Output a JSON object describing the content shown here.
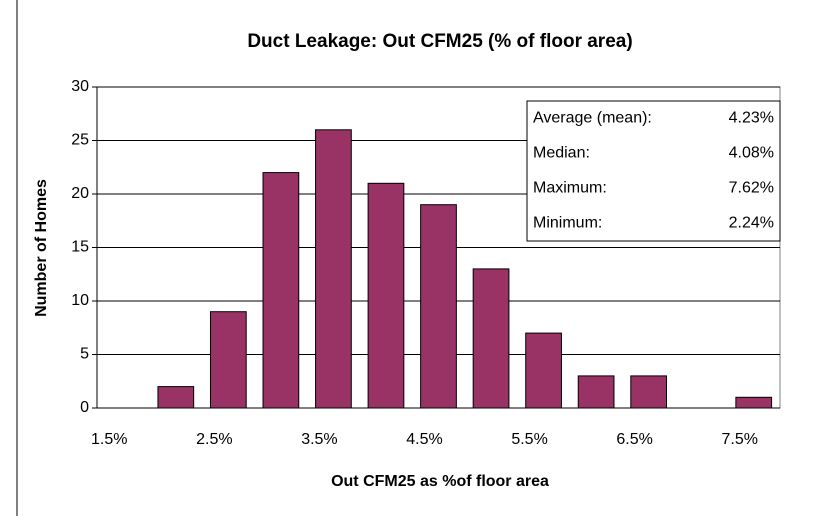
{
  "chart_data": {
    "type": "bar",
    "title": "Duct Leakage: Out CFM25 (% of floor area)",
    "xlabel": "Out CFM25 as %of floor area",
    "ylabel": "Number of Homes",
    "categories": [
      "1.5%",
      null,
      "2.5%",
      null,
      "3.5%",
      null,
      "4.5%",
      null,
      "5.5%",
      null,
      "6.5%",
      null,
      "7.5%"
    ],
    "values": [
      0,
      2,
      9,
      22,
      26,
      21,
      19,
      13,
      7,
      3,
      3,
      0,
      1
    ],
    "color": "#993366",
    "ylim": [
      0,
      30
    ],
    "yticks": [
      0,
      5,
      10,
      15,
      20,
      25,
      30
    ],
    "grid": true,
    "annotations": [
      {
        "label": "Average (mean):",
        "value": "4.23%"
      },
      {
        "label": "Median:",
        "value": "4.08%"
      },
      {
        "label": "Maximum:",
        "value": "7.62%"
      },
      {
        "label": "Minimum:",
        "value": "2.24%"
      }
    ]
  }
}
